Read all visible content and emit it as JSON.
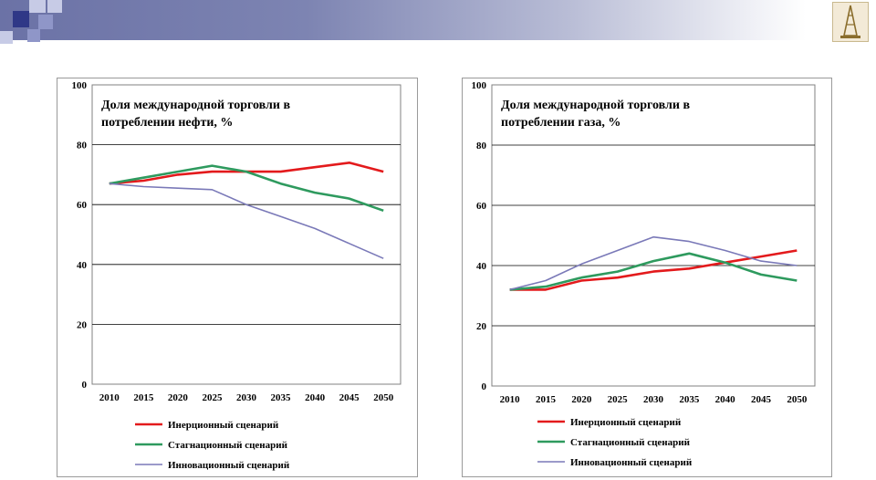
{
  "colors": {
    "inertial": "#e31a1c",
    "stagnation": "#2e9a5e",
    "innovation": "#7a79b8",
    "gridline": "#000000"
  },
  "header": {
    "logo_icon": "oil-derrick-icon"
  },
  "chart_data": [
    {
      "type": "line",
      "title_lines": [
        "Доля международной торговли в",
        "потреблении нефти, %"
      ],
      "categories": [
        "2010",
        "2015",
        "2020",
        "2025",
        "2030",
        "2035",
        "2040",
        "2045",
        "2050"
      ],
      "ylim": [
        0,
        100
      ],
      "yticks": [
        "0",
        "20",
        "40",
        "60",
        "80",
        "100"
      ],
      "grid": true,
      "legend_position": "bottom",
      "series": [
        {
          "name": "Инерционный сценарий",
          "color": "#e31a1c",
          "values": [
            67,
            68,
            70,
            71,
            71,
            71,
            72.5,
            74,
            71
          ]
        },
        {
          "name": "Стагнационный сценарий",
          "color": "#2e9a5e",
          "values": [
            67,
            69,
            71,
            73,
            71,
            67,
            64,
            62,
            58
          ]
        },
        {
          "name": "Инновационный сценарий",
          "color": "#7a79b8",
          "values": [
            67,
            66,
            65.5,
            65,
            60,
            56,
            52,
            47,
            42
          ]
        }
      ]
    },
    {
      "type": "line",
      "title_lines": [
        "Доля международной торговли в",
        "потреблении газа, %"
      ],
      "categories": [
        "2010",
        "2015",
        "2020",
        "2025",
        "2030",
        "2035",
        "2040",
        "2045",
        "2050"
      ],
      "ylim": [
        0,
        100
      ],
      "yticks": [
        "0",
        "20",
        "40",
        "60",
        "80",
        "100"
      ],
      "grid": true,
      "legend_position": "bottom",
      "series": [
        {
          "name": "Инерционный сценарий",
          "color": "#e31a1c",
          "values": [
            32,
            32,
            35,
            36,
            38,
            39,
            41,
            43,
            45
          ]
        },
        {
          "name": "Стагнационный сценарий",
          "color": "#2e9a5e",
          "values": [
            32,
            33,
            36,
            38,
            41.5,
            44,
            41,
            37,
            35
          ]
        },
        {
          "name": "Инновационный сценарий",
          "color": "#7a79b8",
          "values": [
            32,
            35,
            40.5,
            45,
            49.5,
            48,
            45,
            41.5,
            40
          ]
        }
      ]
    }
  ]
}
